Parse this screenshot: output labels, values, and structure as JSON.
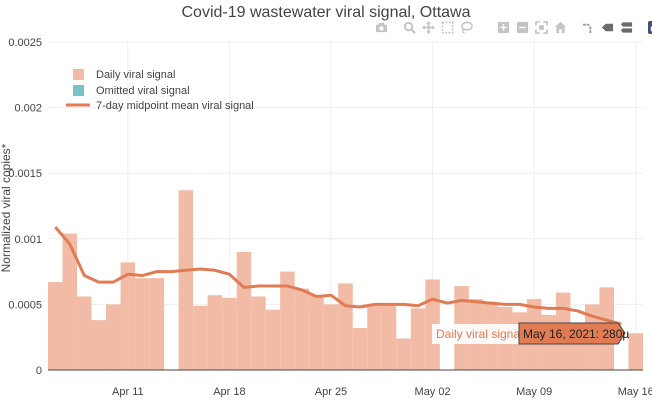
{
  "chart_data": {
    "type": "bar",
    "title": "Covid-19 wastewater viral signal, Ottawa",
    "ylabel": "Normalized viral copies*",
    "xlabel": "",
    "ylim": [
      0,
      0.0025
    ],
    "xlim": [
      "2021-04-06",
      "2021-05-16"
    ],
    "y_ticks": [
      "0",
      "0.0005",
      "0.001",
      "0.0015",
      "0.002",
      "0.0025"
    ],
    "x_ticks": [
      "Apr 11",
      "Apr 18",
      "Apr 25",
      "May 02",
      "May 09",
      "May 16"
    ],
    "grid": true,
    "legend_position": "top-left",
    "series": [
      {
        "name": "Daily viral signal",
        "kind": "bar",
        "color": "#f2bba5",
        "x": [
          "2021-04-06",
          "2021-04-07",
          "2021-04-08",
          "2021-04-09",
          "2021-04-10",
          "2021-04-11",
          "2021-04-12",
          "2021-04-13",
          "2021-04-14",
          "2021-04-15",
          "2021-04-16",
          "2021-04-17",
          "2021-04-18",
          "2021-04-19",
          "2021-04-20",
          "2021-04-21",
          "2021-04-22",
          "2021-04-23",
          "2021-04-24",
          "2021-04-25",
          "2021-04-26",
          "2021-04-27",
          "2021-04-28",
          "2021-04-29",
          "2021-04-30",
          "2021-05-01",
          "2021-05-02",
          "2021-05-03",
          "2021-05-04",
          "2021-05-05",
          "2021-05-06",
          "2021-05-07",
          "2021-05-08",
          "2021-05-09",
          "2021-05-10",
          "2021-05-11",
          "2021-05-12",
          "2021-05-13",
          "2021-05-14",
          "2021-05-15",
          "2021-05-16"
        ],
        "values": [
          0.00067,
          0.00104,
          0.00056,
          0.00038,
          0.0005,
          0.00082,
          0.0007,
          0.0007,
          null,
          0.00137,
          0.00049,
          0.00057,
          0.00055,
          0.0009,
          0.00056,
          0.00046,
          0.00075,
          0.00062,
          0.00057,
          0.0005,
          0.00066,
          0.00032,
          0.00049,
          0.0005,
          0.00024,
          0.00047,
          0.00069,
          null,
          0.00064,
          0.00054,
          0.00052,
          0.00048,
          0.00044,
          0.00054,
          0.00042,
          0.00059,
          0.0002,
          0.0005,
          0.00063,
          null,
          0.00028
        ]
      },
      {
        "name": "Omitted viral signal",
        "kind": "bar",
        "color": "#79c1c4",
        "values": []
      },
      {
        "name": "7-day midpoint mean viral signal",
        "kind": "line",
        "color": "#e07b54",
        "x": [
          "2021-04-06",
          "2021-04-07",
          "2021-04-08",
          "2021-04-09",
          "2021-04-10",
          "2021-04-11",
          "2021-04-12",
          "2021-04-13",
          "2021-04-14",
          "2021-04-15",
          "2021-04-16",
          "2021-04-17",
          "2021-04-18",
          "2021-04-19",
          "2021-04-20",
          "2021-04-21",
          "2021-04-22",
          "2021-04-23",
          "2021-04-24",
          "2021-04-25",
          "2021-04-26",
          "2021-04-27",
          "2021-04-28",
          "2021-04-29",
          "2021-04-30",
          "2021-05-01",
          "2021-05-02",
          "2021-05-03",
          "2021-05-04",
          "2021-05-05",
          "2021-05-06",
          "2021-05-07",
          "2021-05-08",
          "2021-05-09",
          "2021-05-10",
          "2021-05-11",
          "2021-05-12",
          "2021-05-13",
          "2021-05-14",
          "2021-05-15"
        ],
        "values": [
          0.00109,
          0.00096,
          0.00072,
          0.00067,
          0.00067,
          0.00073,
          0.00072,
          0.00075,
          0.00075,
          0.00076,
          0.00077,
          0.00076,
          0.00073,
          0.00063,
          0.00064,
          0.00064,
          0.00064,
          0.00061,
          0.00056,
          0.00057,
          0.00049,
          0.00048,
          0.0005,
          0.0005,
          0.0005,
          0.00049,
          0.00054,
          0.00051,
          0.00053,
          0.00052,
          0.00051,
          0.0005,
          0.0005,
          0.00048,
          0.00047,
          0.00047,
          0.00045,
          0.00041,
          0.00038,
          0.00035
        ]
      }
    ],
    "hover": {
      "series_label": "Daily viral signal",
      "value_label": "May 16, 2021: 280µ",
      "x": "2021-05-16",
      "y": 0.00028
    }
  },
  "modebar": {
    "icons": [
      "camera-icon",
      "zoom-icon",
      "pan-icon",
      "box-select-icon",
      "lasso-select-icon",
      "zoom-in-icon",
      "zoom-out-icon",
      "autoscale-icon",
      "reset-axes-icon",
      "spike-lines-icon",
      "hover-closest-icon",
      "hover-compare-icon",
      "plotly-logo-icon"
    ]
  }
}
